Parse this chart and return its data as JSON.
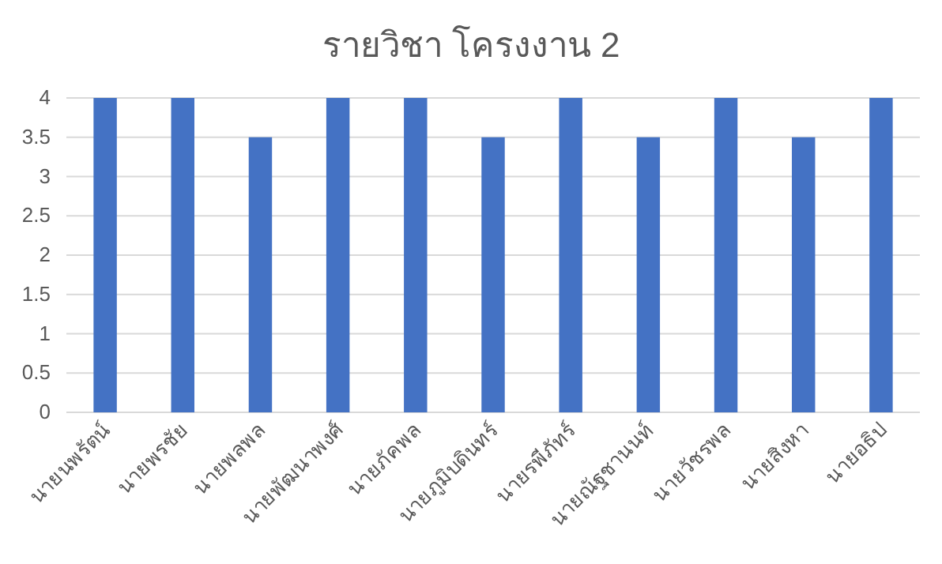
{
  "chart_data": {
    "type": "bar",
    "title": "รายวิชา โครงงาน 2",
    "categories": [
      "นายนพรัตน์",
      "นายพรชัย",
      "นายพลพล",
      "นายพัฒนาพงศ์",
      "นายภัคพล",
      "นายภูมิบดินทร์",
      "นายรพีภัทร์",
      "นายณัฐชานนท์",
      "นายวัชรพล",
      "นายสิงหา",
      "นายอธิป"
    ],
    "values": [
      4,
      4,
      3.5,
      4,
      4,
      3.5,
      4,
      3.5,
      4,
      3.5,
      4
    ],
    "color": "#4472c4",
    "ylim": [
      0,
      4
    ],
    "yticks": [
      0,
      0.5,
      1,
      1.5,
      2,
      2.5,
      3,
      3.5,
      4
    ],
    "grid": "y"
  }
}
